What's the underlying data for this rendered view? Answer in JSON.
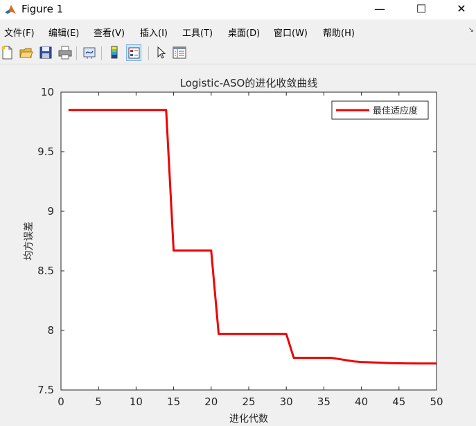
{
  "window": {
    "title": "Figure 1",
    "controls": {
      "minimize": "—",
      "maximize": "☐",
      "close": "✕"
    }
  },
  "menu": [
    "文件(F)",
    "编辑(E)",
    "查看(V)",
    "插入(I)",
    "工具(T)",
    "桌面(D)",
    "窗口(W)",
    "帮助(H)"
  ],
  "toolbar": {
    "buttons": [
      {
        "name": "new-figure",
        "icon": "new-file-icon"
      },
      {
        "name": "open-file",
        "icon": "folder-open-icon"
      },
      {
        "name": "save-figure",
        "icon": "floppy-disk-icon"
      },
      {
        "name": "print-figure",
        "icon": "printer-icon"
      },
      {
        "name": "link-plot",
        "icon": "link-plot-icon"
      },
      {
        "name": "colorbar",
        "icon": "colorbar-icon"
      },
      {
        "name": "legend",
        "icon": "legend-icon",
        "active": true
      },
      {
        "name": "edit-plot",
        "icon": "arrow-pointer-icon"
      },
      {
        "name": "property-inspector",
        "icon": "property-inspector-icon"
      }
    ]
  },
  "colors": {
    "series": "#ee0000",
    "axes_bg": "#ffffff",
    "figure_bg": "#f0f0f0",
    "menu_bg": "#f0f0f0"
  },
  "chart_data": {
    "type": "line",
    "title": "Logistic-ASO的进化收敛曲线",
    "xlabel": "进化代数",
    "ylabel": "均方误差",
    "xlim": [
      0,
      50
    ],
    "ylim": [
      7.5,
      10
    ],
    "xticks": [
      0,
      5,
      10,
      15,
      20,
      25,
      30,
      35,
      40,
      45,
      50
    ],
    "yticks": [
      7.5,
      8,
      8.5,
      9,
      9.5,
      10
    ],
    "ytick_labels": [
      "7.5",
      "8",
      "8.5",
      "9",
      "9.5",
      "10"
    ],
    "grid": false,
    "legend_position": "top-right",
    "series": [
      {
        "name": "最佳适应度",
        "x": [
          1,
          14,
          15,
          20,
          21,
          30,
          31,
          36,
          37,
          38,
          39,
          40,
          42,
          44,
          46,
          48,
          50
        ],
        "y": [
          9.85,
          9.85,
          8.67,
          8.67,
          7.97,
          7.97,
          7.77,
          7.77,
          7.76,
          7.75,
          7.74,
          7.735,
          7.73,
          7.725,
          7.723,
          7.722,
          7.722
        ]
      }
    ]
  }
}
